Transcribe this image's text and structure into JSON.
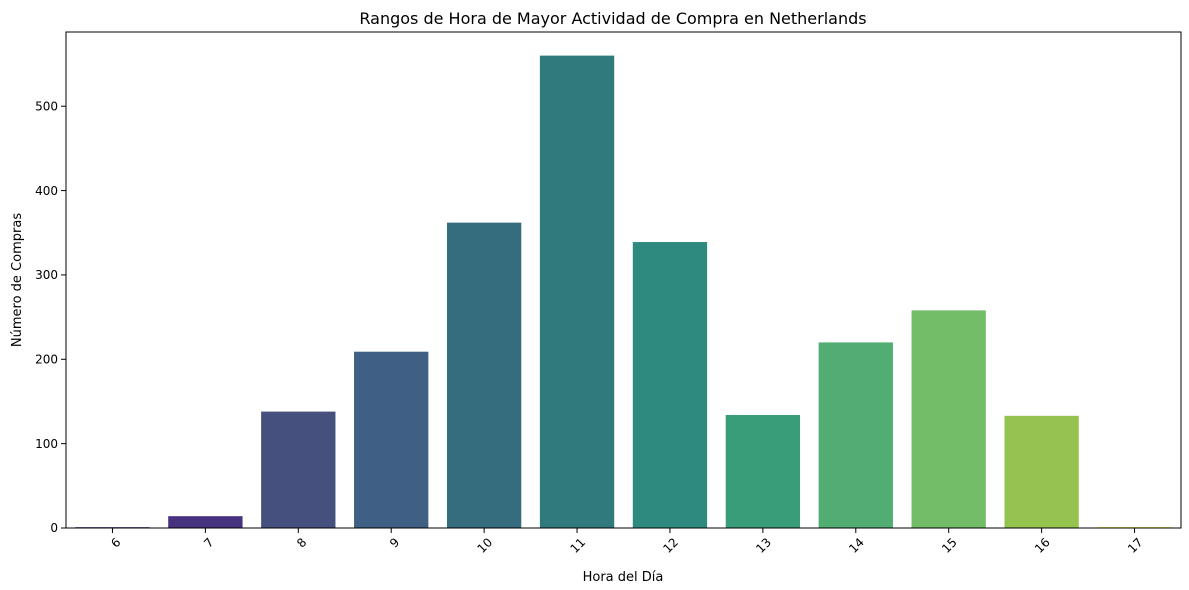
{
  "chart_data": {
    "type": "bar",
    "title": "Rangos de Hora de Mayor Actividad de Compra en Netherlands",
    "xlabel": "Hora del Día",
    "ylabel": "Número de Compras",
    "categories": [
      "6",
      "7",
      "8",
      "9",
      "10",
      "11",
      "12",
      "13",
      "14",
      "15",
      "16",
      "17"
    ],
    "values": [
      1,
      14,
      138,
      209,
      362,
      560,
      339,
      134,
      220,
      258,
      133,
      1
    ],
    "colors": [
      "#440154",
      "#482475",
      "#414487",
      "#355f8d",
      "#2a788e",
      "#21918c",
      "#22a884",
      "#44bf70",
      "#7ad151",
      "#bddf26",
      "#fde725",
      "#fde725"
    ],
    "bar_colors_observed": [
      "#46327e",
      "#46327e",
      "#46507e",
      "#3f6084",
      "#356d7f",
      "#307a7e",
      "#2e8a7e",
      "#3a9d7a",
      "#52ad72",
      "#73bd69",
      "#94c44f",
      "#fde725"
    ],
    "ylim": [
      0,
      588
    ],
    "yticks": [
      0,
      100,
      200,
      300,
      400,
      500
    ],
    "xtick_rotation": 45,
    "grid": false,
    "legend": "none"
  }
}
